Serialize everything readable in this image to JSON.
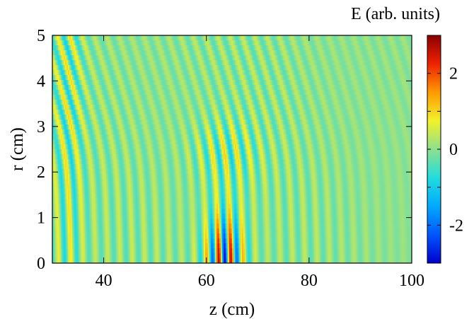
{
  "chart_data": {
    "type": "heatmap",
    "title": "",
    "xlabel": "z (cm)",
    "ylabel": "r (cm)",
    "xlim": [
      30,
      100
    ],
    "ylim": [
      0,
      5
    ],
    "xticks": [
      40,
      60,
      80,
      100
    ],
    "yticks": [
      0,
      1,
      2,
      3,
      4,
      5
    ],
    "colorbar": {
      "title": "E (arb. units)",
      "range": [
        -3,
        3
      ],
      "ticks": [
        -2,
        0,
        2
      ],
      "tick_labels": [
        "-2",
        "0",
        "2"
      ],
      "colormap": [
        "#0000cc",
        "#0055ff",
        "#00aaff",
        "#22dddd",
        "#8ee08e",
        "#f2f22a",
        "#ff9a00",
        "#ee2200",
        "#8c0000"
      ]
    },
    "field": {
      "description": "oscillating wave fronts along z, strongest near axis r=0 around z=62-66",
      "wavelength_cm": 2.4,
      "peak_z": 63.5,
      "peak_r": 0.2,
      "peak_amplitude": 2.6,
      "background_amplitude": 0.35
    }
  }
}
